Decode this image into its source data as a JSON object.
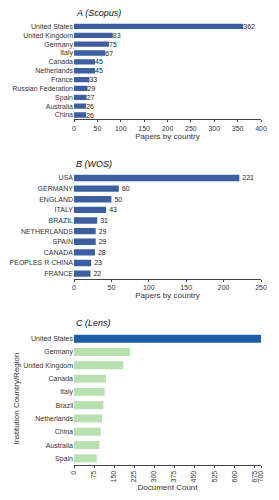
{
  "chart_data": [
    {
      "type": "bar",
      "orientation": "horizontal",
      "title": "A (Scopus)",
      "categories": [
        "United States",
        "United Kingdom",
        "Germany",
        "Italy",
        "Canada",
        "Netherlands",
        "France",
        "Russian Federation",
        "Spain",
        "Australia",
        "China"
      ],
      "values": [
        362,
        83,
        75,
        67,
        45,
        45,
        33,
        29,
        27,
        26,
        26
      ],
      "color": "#3d5fa0",
      "xlabel": "Papers by country",
      "xlim": [
        0,
        400
      ],
      "xticks": [
        0,
        50,
        100,
        150,
        200,
        250,
        300,
        350,
        400
      ],
      "data_labels": true,
      "grid": false
    },
    {
      "type": "bar",
      "orientation": "horizontal",
      "title": "B (WOS)",
      "categories": [
        "USA",
        "GERMANY",
        "ENGLAND",
        "ITALY",
        "BRAZIL",
        "NETHERLANDS",
        "SPAIN",
        "CANADA",
        "PEOPLES R CHINA",
        "FRANCE"
      ],
      "values": [
        221,
        60,
        50,
        43,
        31,
        29,
        29,
        28,
        23,
        22
      ],
      "color": "#3d5fa0",
      "xlabel": "Papers by country",
      "xlim": [
        0,
        250
      ],
      "xticks": [
        0,
        50,
        100,
        150,
        200,
        250
      ],
      "data_labels": true,
      "grid": false
    },
    {
      "type": "bar",
      "orientation": "horizontal",
      "title": "C (Lens)",
      "categories": [
        "United States",
        "Germany",
        "United Kingdom",
        "Canada",
        "Italy",
        "Brazil",
        "Netherlands",
        "China",
        "Australia",
        "Spain"
      ],
      "values": [
        700,
        210,
        185,
        120,
        115,
        110,
        105,
        100,
        95,
        85
      ],
      "colors": [
        "#1a5fa8",
        "#b8e0b0",
        "#b8e0b0",
        "#b8e0b0",
        "#b8e0b0",
        "#b8e0b0",
        "#b8e0b0",
        "#b8e0b0",
        "#b8e0b0",
        "#b8e0b0"
      ],
      "xlabel": "Document Count",
      "ylabel": "Institution Country/Region",
      "xlim": [
        0,
        700
      ],
      "xticks": [
        0,
        75,
        150,
        225,
        300,
        375,
        450,
        525,
        600,
        675,
        700
      ],
      "data_labels": false,
      "grid": false
    }
  ]
}
